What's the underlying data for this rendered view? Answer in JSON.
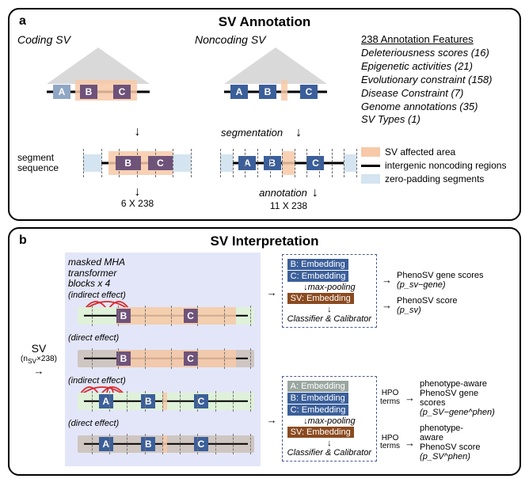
{
  "panels": {
    "a": {
      "letter": "a",
      "title": "SV Annotation",
      "coding": {
        "heading": "Coding SV",
        "segments": [
          {
            "label": "A",
            "color": "#8fa6c4",
            "x": 8,
            "w": 22
          },
          {
            "label": "B",
            "color": "#6f527a",
            "x": 42,
            "w": 22
          },
          {
            "label": "C",
            "color": "#6f527a",
            "x": 84,
            "w": 22
          }
        ],
        "highlight": {
          "x": 36,
          "w": 78,
          "color": "#f7c9a8"
        },
        "triangle_fill": "#d9d9d9",
        "line_w": 130,
        "seq_segments": 6,
        "matrix": "6 X 238"
      },
      "noncoding": {
        "heading": "Noncoding SV",
        "segments": [
          {
            "label": "A",
            "color": "#3b5f9a",
            "x": 8,
            "w": 22
          },
          {
            "label": "B",
            "color": "#3b5f9a",
            "x": 44,
            "w": 22
          },
          {
            "label": "C",
            "color": "#3b5f9a",
            "x": 96,
            "w": 22
          }
        ],
        "highlight": {
          "x": 72,
          "w": 8,
          "color": "#f7c9a8"
        },
        "triangle_fill": "#d9d9d9",
        "line_w": 130,
        "seq_segments": 11,
        "matrix": "11 X 238"
      },
      "segmentation_label": "segmentation",
      "annotation_label": "annotation",
      "seg_seq_label": "segment\nsequence",
      "features": {
        "title": "238 Annotation Features",
        "items": [
          "Deleteriousness scores (16)",
          "Epigenetic activities (21)",
          "Evolutionary constraint (158)",
          "Disease Constraint (7)",
          "Genome annotations (35)",
          "SV Types (1)"
        ]
      },
      "legend": [
        {
          "type": "box",
          "color": "#f7c9a8",
          "text": "SV affected area"
        },
        {
          "type": "line",
          "color": "#000000",
          "text": "intergenic noncoding regions"
        },
        {
          "type": "box",
          "color": "#d4e4f0",
          "text": "zero-padding segments"
        }
      ]
    },
    "b": {
      "letter": "b",
      "title": "SV Interpretation",
      "input_label": "SV",
      "input_shape": "(n_SV×238)",
      "mha_title": "masked MHA\ntransformer\nblocks x 4",
      "effects": [
        {
          "label": "(indirect effect)",
          "bg": "#dff1d8",
          "seg_colors": [
            "#6f527a",
            "#6f527a"
          ],
          "arcs": true,
          "hl": true
        },
        {
          "label": "(direct effect)",
          "bg": "#cfc6c1",
          "seg_colors": [
            "#6f527a",
            "#6f527a"
          ],
          "arcs": false,
          "hl": true
        },
        {
          "label": "(indirect effect)",
          "bg": "#dff1d8",
          "seg_colors": [
            "#3b5f9a",
            "#3b5f9a",
            "#3b5f9a"
          ],
          "arcs": true,
          "hl": true,
          "small_hl": true
        },
        {
          "label": "(direct effect)",
          "bg": "#cfc6c1",
          "seg_colors": [
            "#3b5f9a",
            "#3b5f9a",
            "#3b5f9a"
          ],
          "arcs": false,
          "hl": true,
          "small_hl": true
        }
      ],
      "embed_boxes": [
        {
          "chips": [
            {
              "label": "B: Embedding",
              "color": "#3b5f9a"
            },
            {
              "label": "C: Embedding",
              "color": "#3b5f9a"
            }
          ],
          "pool": "max-pooling",
          "sv_chip": {
            "label": "SV: Embedding",
            "color": "#8b4a1f"
          },
          "footer": "Classifier & Calibrator",
          "outputs": [
            {
              "text": "PhenoSV gene scores",
              "sub": "(p_sv−gene)"
            },
            {
              "text": "PhenoSV score",
              "sub": "(p_sv)"
            }
          ]
        },
        {
          "chips": [
            {
              "label": "A: Embedding",
              "color": "#9aa6a0"
            },
            {
              "label": "B: Embedding",
              "color": "#3b5f9a"
            },
            {
              "label": "C: Embedding",
              "color": "#3b5f9a"
            }
          ],
          "pool": "max-pooling",
          "sv_chip": {
            "label": "SV: Embedding",
            "color": "#8b4a1f"
          },
          "footer": "Classifier & Calibrator",
          "hpo": "HPO\nterms",
          "outputs": [
            {
              "text": "phenotype-aware\nPhenoSV gene scores",
              "sub": "(p_SV−gene^phen)"
            },
            {
              "text": "phenotype-aware\nPhenoSV score",
              "sub": "(p_SV^phen)"
            }
          ]
        }
      ]
    }
  },
  "colors": {
    "arc_red": "#d82a2a",
    "pad_blue": "#d4e4f0"
  }
}
